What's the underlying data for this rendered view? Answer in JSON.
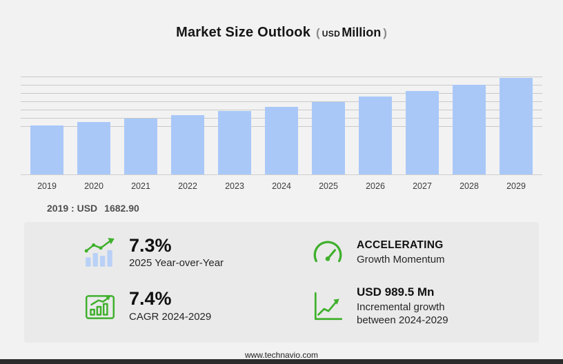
{
  "title": {
    "main": "Market Size Outlook",
    "open_paren": "(",
    "currency": "USD",
    "unit": "Million",
    "close_paren": ")"
  },
  "chart_data": {
    "type": "bar",
    "title": "Market Size Outlook (USD Million)",
    "categories": [
      "2019",
      "2020",
      "2021",
      "2022",
      "2023",
      "2024",
      "2025",
      "2026",
      "2027",
      "2028",
      "2029"
    ],
    "values": [
      1682.9,
      1790,
      1905,
      2030,
      2163,
      2305.7,
      2474,
      2660,
      2857,
      3068,
      3295.2
    ],
    "unit": "USD Million",
    "xlabel": "",
    "ylabel": "",
    "grid": "horizontal",
    "legend": "none",
    "annotations": [
      "2019 : USD 1682.90"
    ]
  },
  "baseline": {
    "label": "2019 : USD",
    "value": "1682.90"
  },
  "stats": {
    "yoy": {
      "value": "7.3%",
      "label": "2025 Year-over-Year"
    },
    "momentum": {
      "value": "ACCELERATING",
      "label": "Growth Momentum"
    },
    "cagr": {
      "value": "7.4%",
      "label": "CAGR 2024-2029"
    },
    "incremental": {
      "value": "USD 989.5 Mn",
      "label": "Incremental growth between 2024-2029"
    }
  },
  "footer": {
    "url": "www.technavio.com"
  },
  "colors": {
    "accent_green": "#3fb02c",
    "bar_blue": "#a9c8f8",
    "icon_bar_blue": "#b9d0f7"
  }
}
